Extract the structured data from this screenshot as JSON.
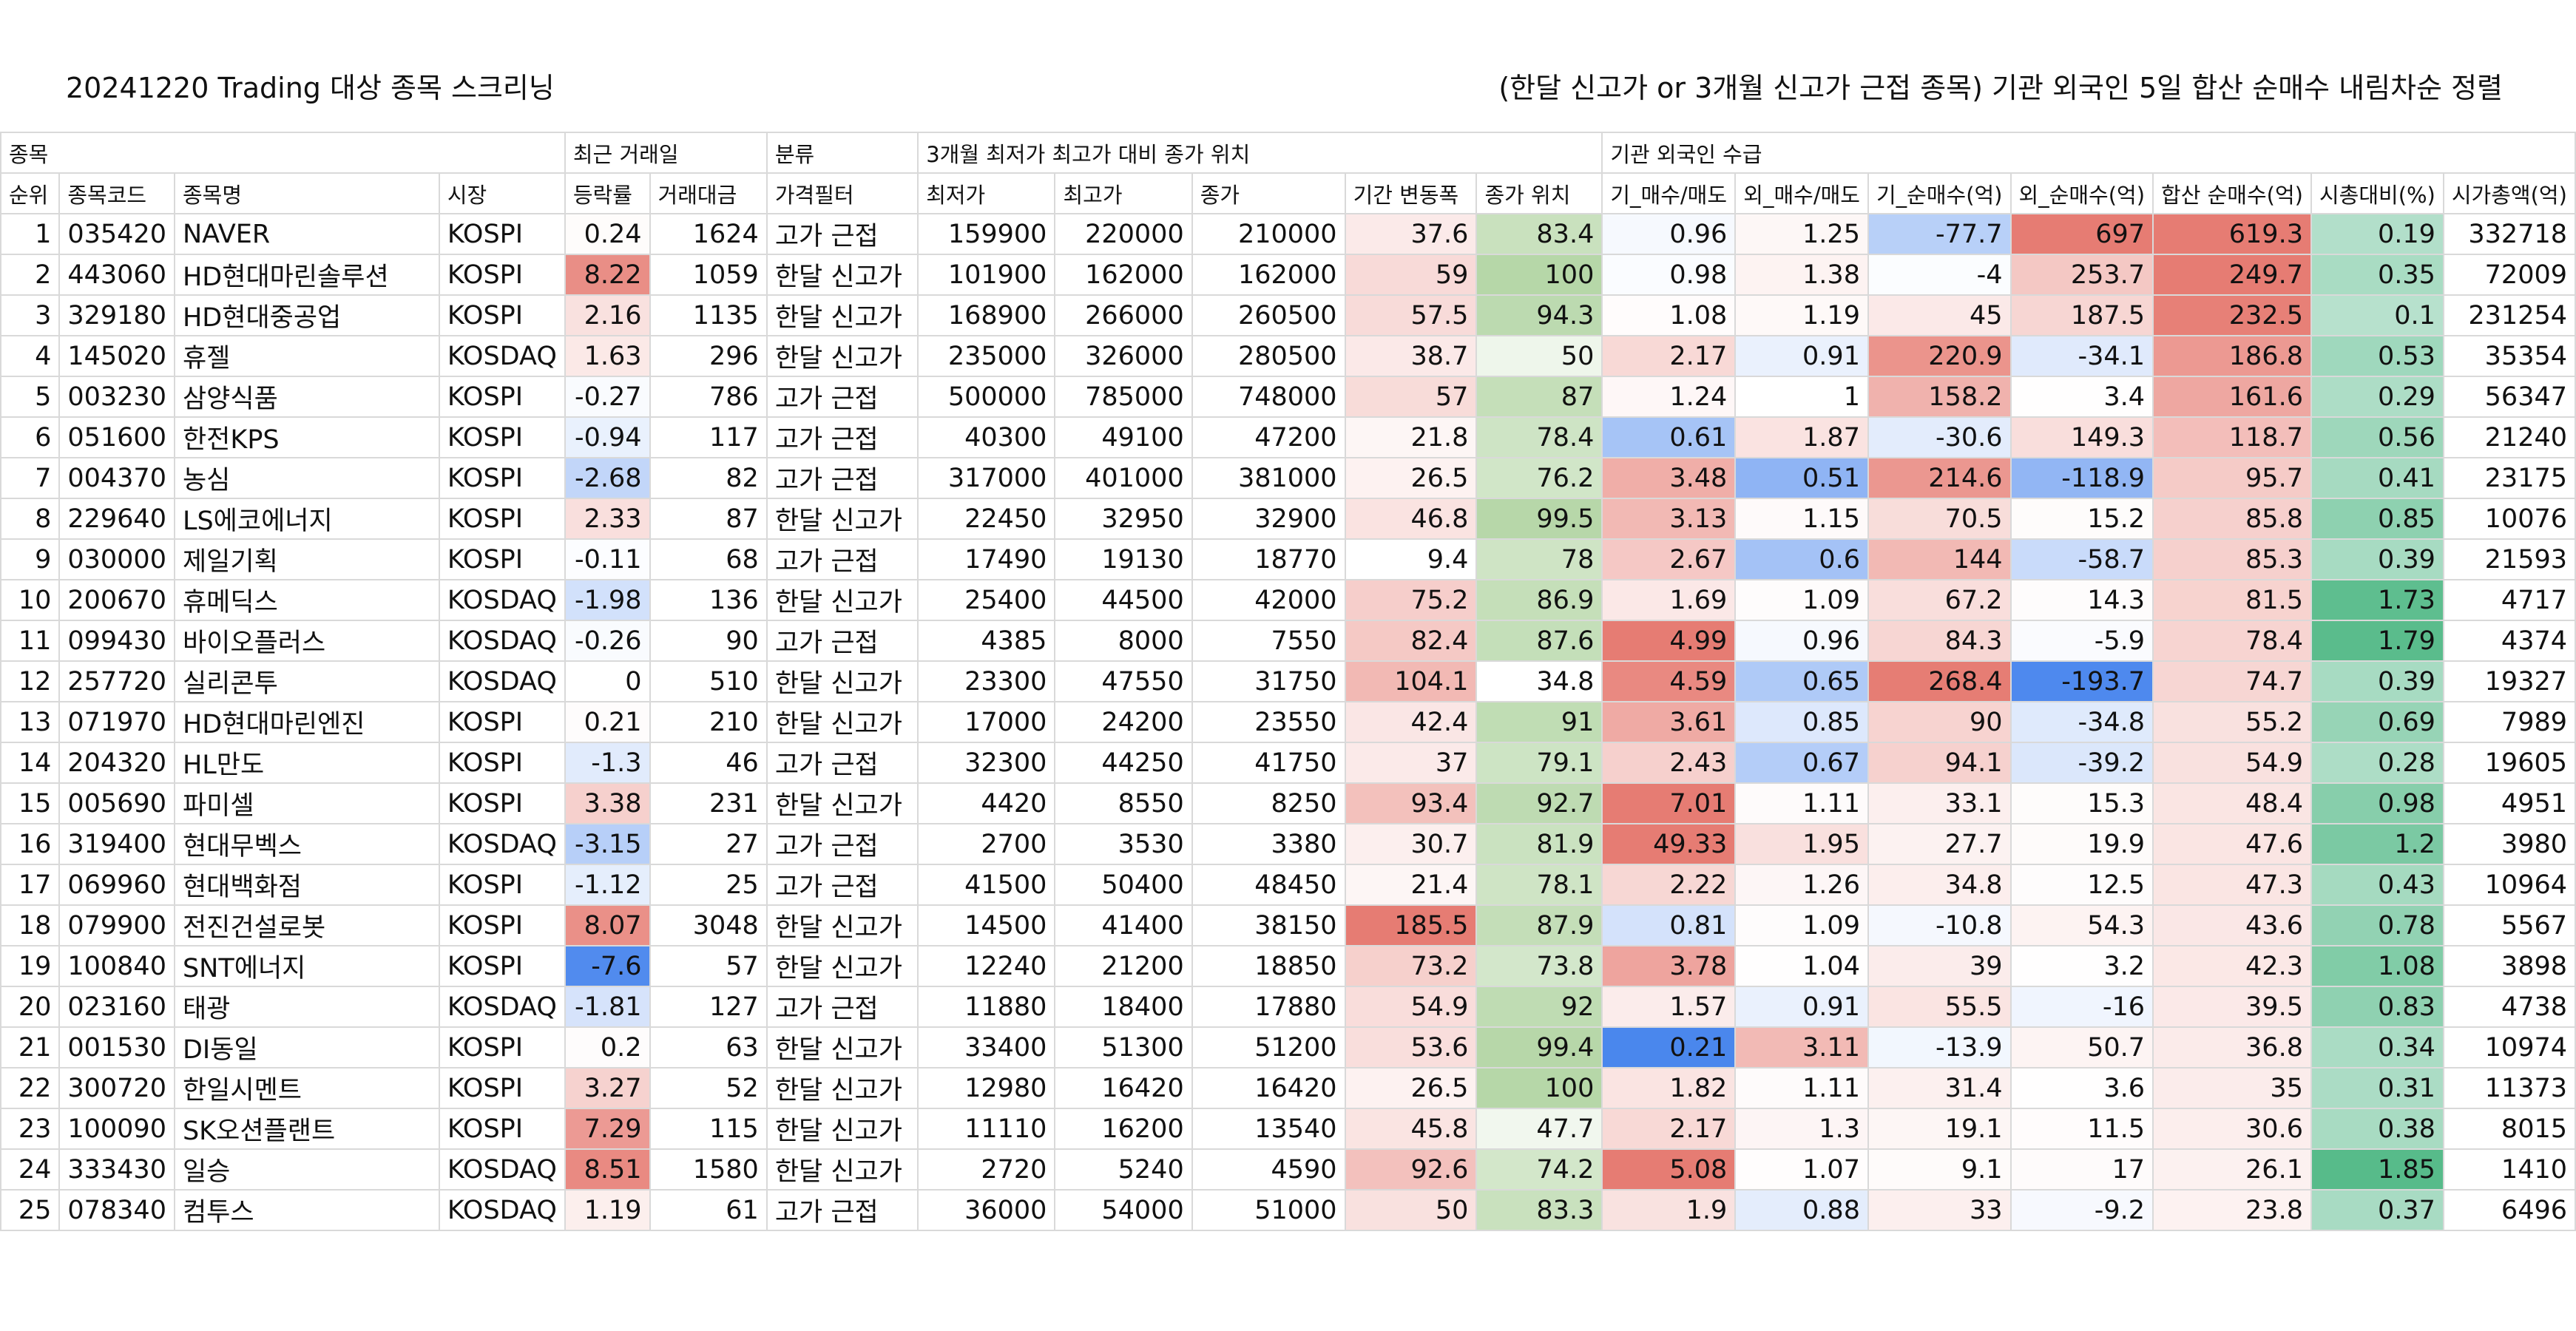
{
  "title_left": "20241220 Trading 대상 종목 스크리닝",
  "title_right": "(한달 신고가 or 3개월 신고가 근접 종목) 기관 외국인 5일 합산 순매수 내림차순 정렬",
  "groups": [
    "종목",
    "최근 거래일",
    "분류",
    "3개월 최저가 최고가 대비 종가 위치",
    "기관 외국인 수급"
  ],
  "headers": [
    "순위",
    "종목코드",
    "종목명",
    "시장",
    "등락률",
    "거래대금",
    "가격필터",
    "최저가",
    "최고가",
    "종가",
    "기간 변동폭",
    "종가 위치",
    "기_매수/매도",
    "외_매수/매도",
    "기_순매수(억)",
    "외_순매수(억)",
    "합산 순매수(억)",
    "시총대비(%)",
    "시가총액(억)"
  ],
  "rows": [
    [
      "1",
      "035420",
      "NAVER",
      "KOSPI",
      "0.24",
      "1624",
      "고가 근접",
      "159900",
      "220000",
      "210000",
      "37.6",
      "83.4",
      "0.96",
      "1.25",
      "-77.7",
      "697",
      "619.3",
      "0.19",
      "332718"
    ],
    [
      "2",
      "443060",
      "HD현대마린솔루션",
      "KOSPI",
      "8.22",
      "1059",
      "한달 신고가",
      "101900",
      "162000",
      "162000",
      "59",
      "100",
      "0.98",
      "1.38",
      "-4",
      "253.7",
      "249.7",
      "0.35",
      "72009"
    ],
    [
      "3",
      "329180",
      "HD현대중공업",
      "KOSPI",
      "2.16",
      "1135",
      "한달 신고가",
      "168900",
      "266000",
      "260500",
      "57.5",
      "94.3",
      "1.08",
      "1.19",
      "45",
      "187.5",
      "232.5",
      "0.1",
      "231254"
    ],
    [
      "4",
      "145020",
      "휴젤",
      "KOSDAQ",
      "1.63",
      "296",
      "한달 신고가",
      "235000",
      "326000",
      "280500",
      "38.7",
      "50",
      "2.17",
      "0.91",
      "220.9",
      "-34.1",
      "186.8",
      "0.53",
      "35354"
    ],
    [
      "5",
      "003230",
      "삼양식품",
      "KOSPI",
      "-0.27",
      "786",
      "고가 근접",
      "500000",
      "785000",
      "748000",
      "57",
      "87",
      "1.24",
      "1",
      "158.2",
      "3.4",
      "161.6",
      "0.29",
      "56347"
    ],
    [
      "6",
      "051600",
      "한전KPS",
      "KOSPI",
      "-0.94",
      "117",
      "고가 근접",
      "40300",
      "49100",
      "47200",
      "21.8",
      "78.4",
      "0.61",
      "1.87",
      "-30.6",
      "149.3",
      "118.7",
      "0.56",
      "21240"
    ],
    [
      "7",
      "004370",
      "농심",
      "KOSPI",
      "-2.68",
      "82",
      "고가 근접",
      "317000",
      "401000",
      "381000",
      "26.5",
      "76.2",
      "3.48",
      "0.51",
      "214.6",
      "-118.9",
      "95.7",
      "0.41",
      "23175"
    ],
    [
      "8",
      "229640",
      "LS에코에너지",
      "KOSPI",
      "2.33",
      "87",
      "한달 신고가",
      "22450",
      "32950",
      "32900",
      "46.8",
      "99.5",
      "3.13",
      "1.15",
      "70.5",
      "15.2",
      "85.8",
      "0.85",
      "10076"
    ],
    [
      "9",
      "030000",
      "제일기획",
      "KOSPI",
      "-0.11",
      "68",
      "고가 근접",
      "17490",
      "19130",
      "18770",
      "9.4",
      "78",
      "2.67",
      "0.6",
      "144",
      "-58.7",
      "85.3",
      "0.39",
      "21593"
    ],
    [
      "10",
      "200670",
      "휴메딕스",
      "KOSDAQ",
      "-1.98",
      "136",
      "한달 신고가",
      "25400",
      "44500",
      "42000",
      "75.2",
      "86.9",
      "1.69",
      "1.09",
      "67.2",
      "14.3",
      "81.5",
      "1.73",
      "4717"
    ],
    [
      "11",
      "099430",
      "바이오플러스",
      "KOSDAQ",
      "-0.26",
      "90",
      "고가 근접",
      "4385",
      "8000",
      "7550",
      "82.4",
      "87.6",
      "4.99",
      "0.96",
      "84.3",
      "-5.9",
      "78.4",
      "1.79",
      "4374"
    ],
    [
      "12",
      "257720",
      "실리콘투",
      "KOSDAQ",
      "0",
      "510",
      "한달 신고가",
      "23300",
      "47550",
      "31750",
      "104.1",
      "34.8",
      "4.59",
      "0.65",
      "268.4",
      "-193.7",
      "74.7",
      "0.39",
      "19327"
    ],
    [
      "13",
      "071970",
      "HD현대마린엔진",
      "KOSPI",
      "0.21",
      "210",
      "한달 신고가",
      "17000",
      "24200",
      "23550",
      "42.4",
      "91",
      "3.61",
      "0.85",
      "90",
      "-34.8",
      "55.2",
      "0.69",
      "7989"
    ],
    [
      "14",
      "204320",
      "HL만도",
      "KOSPI",
      "-1.3",
      "46",
      "고가 근접",
      "32300",
      "44250",
      "41750",
      "37",
      "79.1",
      "2.43",
      "0.67",
      "94.1",
      "-39.2",
      "54.9",
      "0.28",
      "19605"
    ],
    [
      "15",
      "005690",
      "파미셀",
      "KOSPI",
      "3.38",
      "231",
      "한달 신고가",
      "4420",
      "8550",
      "8250",
      "93.4",
      "92.7",
      "7.01",
      "1.11",
      "33.1",
      "15.3",
      "48.4",
      "0.98",
      "4951"
    ],
    [
      "16",
      "319400",
      "현대무벡스",
      "KOSDAQ",
      "-3.15",
      "27",
      "고가 근접",
      "2700",
      "3530",
      "3380",
      "30.7",
      "81.9",
      "49.33",
      "1.95",
      "27.7",
      "19.9",
      "47.6",
      "1.2",
      "3980"
    ],
    [
      "17",
      "069960",
      "현대백화점",
      "KOSPI",
      "-1.12",
      "25",
      "고가 근접",
      "41500",
      "50400",
      "48450",
      "21.4",
      "78.1",
      "2.22",
      "1.26",
      "34.8",
      "12.5",
      "47.3",
      "0.43",
      "10964"
    ],
    [
      "18",
      "079900",
      "전진건설로봇",
      "KOSPI",
      "8.07",
      "3048",
      "한달 신고가",
      "14500",
      "41400",
      "38150",
      "185.5",
      "87.9",
      "0.81",
      "1.09",
      "-10.8",
      "54.3",
      "43.6",
      "0.78",
      "5567"
    ],
    [
      "19",
      "100840",
      "SNT에너지",
      "KOSPI",
      "-7.6",
      "57",
      "한달 신고가",
      "12240",
      "21200",
      "18850",
      "73.2",
      "73.8",
      "3.78",
      "1.04",
      "39",
      "3.2",
      "42.3",
      "1.08",
      "3898"
    ],
    [
      "20",
      "023160",
      "태광",
      "KOSDAQ",
      "-1.81",
      "127",
      "고가 근접",
      "11880",
      "18400",
      "17880",
      "54.9",
      "92",
      "1.57",
      "0.91",
      "55.5",
      "-16",
      "39.5",
      "0.83",
      "4738"
    ],
    [
      "21",
      "001530",
      "DI동일",
      "KOSPI",
      "0.2",
      "63",
      "한달 신고가",
      "33400",
      "51300",
      "51200",
      "53.6",
      "99.4",
      "0.21",
      "3.11",
      "-13.9",
      "50.7",
      "36.8",
      "0.34",
      "10974"
    ],
    [
      "22",
      "300720",
      "한일시멘트",
      "KOSPI",
      "3.27",
      "52",
      "한달 신고가",
      "12980",
      "16420",
      "16420",
      "26.5",
      "100",
      "1.82",
      "1.11",
      "31.4",
      "3.6",
      "35",
      "0.31",
      "11373"
    ],
    [
      "23",
      "100090",
      "SK오션플랜트",
      "KOSPI",
      "7.29",
      "115",
      "한달 신고가",
      "11110",
      "16200",
      "13540",
      "45.8",
      "47.7",
      "2.17",
      "1.3",
      "19.1",
      "11.5",
      "30.6",
      "0.38",
      "8015"
    ],
    [
      "24",
      "333430",
      "일승",
      "KOSDAQ",
      "8.51",
      "1580",
      "한달 신고가",
      "2720",
      "5240",
      "4590",
      "92.6",
      "74.2",
      "5.08",
      "1.07",
      "9.1",
      "17",
      "26.1",
      "1.85",
      "1410"
    ],
    [
      "25",
      "078340",
      "컴투스",
      "KOSDAQ",
      "1.19",
      "61",
      "고가 근접",
      "36000",
      "54000",
      "51000",
      "50",
      "83.3",
      "1.9",
      "0.88",
      "33",
      "-9.2",
      "23.8",
      "0.37",
      "6496"
    ]
  ]
}
